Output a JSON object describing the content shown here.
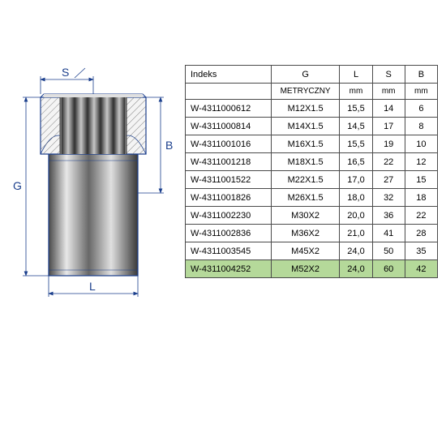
{
  "table": {
    "headers": [
      "Indeks",
      "G",
      "L",
      "S",
      "B"
    ],
    "units": [
      "",
      "METRYCZNY",
      "mm",
      "mm",
      "mm"
    ],
    "rows": [
      [
        "W-4311000612",
        "M12X1.5",
        "15,5",
        "14",
        "6"
      ],
      [
        "W-4311000814",
        "M14X1.5",
        "14,5",
        "17",
        "8"
      ],
      [
        "W-4311001016",
        "M16X1.5",
        "15,5",
        "19",
        "10"
      ],
      [
        "W-4311001218",
        "M18X1.5",
        "16,5",
        "22",
        "12"
      ],
      [
        "W-4311001522",
        "M22X1.5",
        "17,0",
        "27",
        "15"
      ],
      [
        "W-4311001826",
        "M26X1.5",
        "18,0",
        "32",
        "18"
      ],
      [
        "W-4311002230",
        "M30X2",
        "20,0",
        "36",
        "22"
      ],
      [
        "W-4311002836",
        "M36X2",
        "21,0",
        "41",
        "28"
      ],
      [
        "W-4311003545",
        "M45X2",
        "24,0",
        "50",
        "35"
      ],
      [
        "W-4311004252",
        "M52X2",
        "24,0",
        "60",
        "42"
      ]
    ],
    "highlight_index": 9,
    "highlight_color": "#b5d99a",
    "border_color": "#4a4a4a",
    "font_size": 11
  },
  "diagram": {
    "labels": {
      "S": "S",
      "G": "G",
      "L": "L",
      "B": "B"
    },
    "colors": {
      "outline": "#1a3e8c",
      "dimension": "#1a3e8c",
      "hatch": "#6a6a6a",
      "fill_light": "#d8d8d8",
      "fill_mid": "#a8a8a8",
      "fill_dark": "#585858",
      "fill_darker": "#383838",
      "highlight": "#f0f0f0"
    }
  }
}
